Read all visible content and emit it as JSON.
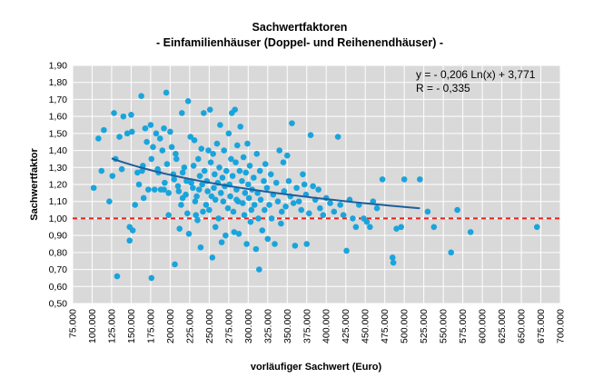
{
  "chart_data": {
    "type": "scatter",
    "title": "Sachwertfaktoren",
    "subtitle": "- Einfamilienhäuser (Doppel- und Reihenendhäuser) -",
    "xlabel": "vorläufiger Sachwert (Euro)",
    "ylabel": "Sachwertfaktor",
    "xlim": [
      75000,
      700000
    ],
    "ylim": [
      0.5,
      1.9
    ],
    "x_ticks": [
      "75.000",
      "100.000",
      "125.000",
      "150.000",
      "175.000",
      "200.000",
      "225.000",
      "250.000",
      "275.000",
      "300.000",
      "325.000",
      "350.000",
      "375.000",
      "400.000",
      "425.000",
      "450.000",
      "475.000",
      "500.000",
      "525.000",
      "550.000",
      "575.000",
      "600.000",
      "625.000",
      "650.000",
      "675.000",
      "700.000"
    ],
    "y_ticks": [
      "0,50",
      "0,60",
      "0,70",
      "0,80",
      "0,90",
      "1,00",
      "1,10",
      "1,20",
      "1,30",
      "1,40",
      "1,50",
      "1,60",
      "1,70",
      "1,80",
      "1,90"
    ],
    "grid": true,
    "annotations": [
      "y = - 0,206 Ln(x) + 3,771",
      "R = - 0,335"
    ],
    "reference_line": {
      "y": 1.0,
      "color": "#e8201c",
      "style": "dashed"
    },
    "trendline": {
      "coef": -0.206,
      "intercept": 3.771,
      "x_range": [
        125000,
        520000
      ],
      "color": "#1f5e99"
    },
    "point_color": "#1aa4dc",
    "points": [
      [
        102000,
        1.18
      ],
      [
        108000,
        1.47
      ],
      [
        112000,
        1.28
      ],
      [
        115000,
        1.52
      ],
      [
        122000,
        1.1
      ],
      [
        126000,
        1.25
      ],
      [
        128000,
        1.62
      ],
      [
        130000,
        1.35
      ],
      [
        132000,
        0.66
      ],
      [
        135000,
        1.48
      ],
      [
        138000,
        1.29
      ],
      [
        140000,
        1.6
      ],
      [
        145000,
        1.5
      ],
      [
        148000,
        0.95
      ],
      [
        148000,
        0.87
      ],
      [
        150000,
        1.61
      ],
      [
        151000,
        1.51
      ],
      [
        152000,
        0.93
      ],
      [
        155000,
        1.08
      ],
      [
        158000,
        1.27
      ],
      [
        160000,
        1.2
      ],
      [
        163000,
        1.72
      ],
      [
        164000,
        1.28
      ],
      [
        165000,
        1.31
      ],
      [
        166000,
        1.12
      ],
      [
        168000,
        1.53
      ],
      [
        170000,
        1.45
      ],
      [
        172000,
        1.17
      ],
      [
        175000,
        1.55
      ],
      [
        176000,
        1.35
      ],
      [
        176000,
        0.65
      ],
      [
        178000,
        1.42
      ],
      [
        180000,
        1.17
      ],
      [
        182000,
        1.5
      ],
      [
        184000,
        1.29
      ],
      [
        185000,
        1.27
      ],
      [
        187000,
        1.47
      ],
      [
        188000,
        1.17
      ],
      [
        190000,
        1.4
      ],
      [
        192000,
        1.53
      ],
      [
        193000,
        1.21
      ],
      [
        195000,
        1.74
      ],
      [
        196000,
        1.32
      ],
      [
        198000,
        1.15
      ],
      [
        198000,
        1.02
      ],
      [
        200000,
        1.51
      ],
      [
        202000,
        1.42
      ],
      [
        204000,
        1.26
      ],
      [
        205000,
        1.23
      ],
      [
        206000,
        0.73
      ],
      [
        207000,
        1.38
      ],
      [
        208000,
        1.35
      ],
      [
        210000,
        1.19
      ],
      [
        211000,
        1.16
      ],
      [
        212000,
        0.94
      ],
      [
        214000,
        1.08
      ],
      [
        215000,
        1.62
      ],
      [
        216000,
        1.27
      ],
      [
        218000,
        1.3
      ],
      [
        220000,
        1.14
      ],
      [
        221000,
        1.22
      ],
      [
        222000,
        1.03
      ],
      [
        223000,
        1.69
      ],
      [
        224000,
        0.91
      ],
      [
        226000,
        1.48
      ],
      [
        227000,
        1.21
      ],
      [
        229000,
        1.18
      ],
      [
        230000,
        1.31
      ],
      [
        231000,
        1.46
      ],
      [
        232000,
        1.1
      ],
      [
        234000,
        1.13
      ],
      [
        235000,
        0.99
      ],
      [
        236000,
        1.35
      ],
      [
        237000,
        1.17
      ],
      [
        238000,
        1.25
      ],
      [
        239000,
        0.83
      ],
      [
        240000,
        1.41
      ],
      [
        241000,
        1.2
      ],
      [
        242000,
        1.04
      ],
      [
        243000,
        1.62
      ],
      [
        244000,
        1.28
      ],
      [
        246000,
        1.08
      ],
      [
        247000,
        1.22
      ],
      [
        248000,
        1.16
      ],
      [
        249000,
        1.4
      ],
      [
        250000,
        1.05
      ],
      [
        251000,
        1.64
      ],
      [
        252000,
        1.33
      ],
      [
        253000,
        1.13
      ],
      [
        254000,
        0.77
      ],
      [
        255000,
        1.38
      ],
      [
        256000,
        1.18
      ],
      [
        257000,
        1.26
      ],
      [
        258000,
        1.11
      ],
      [
        260000,
        1.44
      ],
      [
        261000,
        1.21
      ],
      [
        262000,
        1.0
      ],
      [
        263000,
        1.3
      ],
      [
        264000,
        1.55
      ],
      [
        265000,
        1.15
      ],
      [
        266000,
        0.86
      ],
      [
        267000,
        1.24
      ],
      [
        268000,
        1.1
      ],
      [
        269000,
        1.4
      ],
      [
        270000,
        1.19
      ],
      [
        271000,
        0.9
      ],
      [
        272000,
        1.28
      ],
      [
        274000,
        1.06
      ],
      [
        275000,
        1.5
      ],
      [
        276000,
        1.2
      ],
      [
        277000,
        1.13
      ],
      [
        278000,
        1.35
      ],
      [
        279000,
        1.62
      ],
      [
        280000,
        1.25
      ],
      [
        281000,
        1.04
      ],
      [
        282000,
        0.92
      ],
      [
        283000,
        1.64
      ],
      [
        284000,
        1.33
      ],
      [
        285000,
        1.17
      ],
      [
        286000,
        1.43
      ],
      [
        287000,
        1.1
      ],
      [
        288000,
        0.91
      ],
      [
        289000,
        1.28
      ],
      [
        290000,
        1.54
      ],
      [
        292000,
        1.22
      ],
      [
        293000,
        1.09
      ],
      [
        294000,
        1.36
      ],
      [
        295000,
        1.02
      ],
      [
        296000,
        1.15
      ],
      [
        297000,
        1.27
      ],
      [
        298000,
        0.85
      ],
      [
        299000,
        1.44
      ],
      [
        300000,
        1.2
      ],
      [
        301000,
        1.12
      ],
      [
        302000,
        1.31
      ],
      [
        303000,
        0.98
      ],
      [
        304000,
        1.05
      ],
      [
        305000,
        1.17
      ],
      [
        307000,
        1.24
      ],
      [
        308000,
        1.08
      ],
      [
        310000,
        0.82
      ],
      [
        311000,
        1.38
      ],
      [
        312000,
        1.15
      ],
      [
        313000,
        1.0
      ],
      [
        314000,
        0.7
      ],
      [
        315000,
        1.28
      ],
      [
        316000,
        1.11
      ],
      [
        318000,
        0.93
      ],
      [
        320000,
        1.22
      ],
      [
        321000,
        1.05
      ],
      [
        322000,
        1.32
      ],
      [
        324000,
        1.18
      ],
      [
        325000,
        0.88
      ],
      [
        327000,
        1.08
      ],
      [
        329000,
        1.26
      ],
      [
        330000,
        1.0
      ],
      [
        332000,
        1.14
      ],
      [
        334000,
        0.85
      ],
      [
        336000,
        1.21
      ],
      [
        338000,
        1.1
      ],
      [
        340000,
        1.4
      ],
      [
        342000,
        0.97
      ],
      [
        343000,
        1.04
      ],
      [
        345000,
        1.33
      ],
      [
        346000,
        1.16
      ],
      [
        348000,
        1.07
      ],
      [
        350000,
        1.37
      ],
      [
        352000,
        1.22
      ],
      [
        354000,
        1.13
      ],
      [
        356000,
        1.56
      ],
      [
        358000,
        1.09
      ],
      [
        360000,
        0.84
      ],
      [
        362000,
        1.18
      ],
      [
        365000,
        1.1
      ],
      [
        368000,
        1.05
      ],
      [
        370000,
        1.26
      ],
      [
        372000,
        1.2
      ],
      [
        374000,
        1.14
      ],
      [
        375000,
        0.85
      ],
      [
        378000,
        1.03
      ],
      [
        380000,
        1.49
      ],
      [
        383000,
        1.19
      ],
      [
        386000,
        1.11
      ],
      [
        390000,
        1.17
      ],
      [
        392000,
        1.06
      ],
      [
        396000,
        1.02
      ],
      [
        400000,
        1.12
      ],
      [
        405000,
        1.09
      ],
      [
        410000,
        1.04
      ],
      [
        415000,
        1.48
      ],
      [
        418000,
        1.08
      ],
      [
        422000,
        1.02
      ],
      [
        426000,
        0.81
      ],
      [
        430000,
        1.11
      ],
      [
        434000,
        1.0
      ],
      [
        438000,
        0.95
      ],
      [
        442000,
        1.08
      ],
      [
        448000,
        1.0
      ],
      [
        452000,
        0.98
      ],
      [
        456000,
        0.95
      ],
      [
        460000,
        1.1
      ],
      [
        465000,
        1.06
      ],
      [
        472000,
        1.23
      ],
      [
        485000,
        0.77
      ],
      [
        486000,
        0.74
      ],
      [
        490000,
        0.94
      ],
      [
        496000,
        0.95
      ],
      [
        500000,
        1.23
      ],
      [
        520000,
        1.23
      ],
      [
        530000,
        1.04
      ],
      [
        538000,
        0.95
      ],
      [
        560000,
        0.8
      ],
      [
        568000,
        1.05
      ],
      [
        585000,
        0.92
      ],
      [
        670000,
        0.95
      ],
      [
        192000,
        1.17
      ],
      [
        216000,
        1.12
      ],
      [
        233000,
        1.02
      ],
      [
        258000,
        0.95
      ],
      [
        285000,
        1.11
      ]
    ]
  }
}
